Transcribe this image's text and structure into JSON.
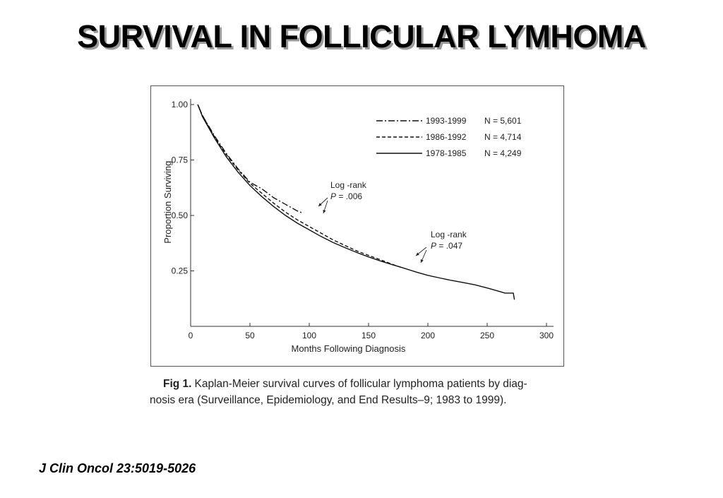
{
  "slide": {
    "title": "SURVIVAL IN FOLLICULAR LYMHOMA",
    "citation": "J Clin Oncol 23:5019-5026"
  },
  "caption": {
    "label": "Fig 1.",
    "line1": "Kaplan-Meier survival curves of follicular lymphoma patients by diag-",
    "line2": "nosis era (Surveillance, Epidemiology, and End Results–9; 1983 to 1999)."
  },
  "chart_data": {
    "type": "line",
    "xlabel": "Months Following Diagnosis",
    "ylabel": "Proportion Surviving",
    "xlim": [
      0,
      300
    ],
    "ylim": [
      0,
      1.0
    ],
    "x_ticks": [
      0,
      50,
      100,
      150,
      200,
      250,
      300
    ],
    "x_tick_labels": [
      "0",
      "50",
      "100",
      "150",
      "200",
      "250",
      "300"
    ],
    "y_ticks": [
      0.25,
      0.5,
      0.75,
      1.0
    ],
    "y_tick_labels": [
      "0.25",
      "0.50",
      "0.75",
      "1.00"
    ],
    "grid": false,
    "legend_position": "top-right",
    "series": [
      {
        "name": "1993-1999",
        "n_label": "N = 5,601",
        "style": "dashdot",
        "x": [
          6,
          10,
          20,
          30,
          40,
          50,
          60,
          70,
          80,
          90,
          95
        ],
        "y": [
          1.0,
          0.95,
          0.86,
          0.78,
          0.71,
          0.65,
          0.62,
          0.58,
          0.55,
          0.52,
          0.51
        ]
      },
      {
        "name": "1986-1992",
        "n_label": "N = 4,714",
        "style": "dashed",
        "x": [
          6,
          10,
          20,
          30,
          40,
          50,
          60,
          70,
          80,
          90,
          100,
          110,
          120,
          130,
          140,
          150,
          160,
          170,
          178
        ],
        "y": [
          1.0,
          0.95,
          0.855,
          0.775,
          0.705,
          0.645,
          0.6,
          0.555,
          0.515,
          0.48,
          0.45,
          0.42,
          0.39,
          0.365,
          0.34,
          0.32,
          0.3,
          0.28,
          0.265
        ]
      },
      {
        "name": "1978-1985",
        "n_label": "N = 4,249",
        "style": "solid",
        "x": [
          6,
          10,
          20,
          30,
          40,
          50,
          60,
          70,
          80,
          90,
          100,
          110,
          120,
          130,
          140,
          150,
          160,
          170,
          180,
          190,
          200,
          210,
          220,
          230,
          240,
          250,
          260,
          265,
          272,
          273
        ],
        "y": [
          1.0,
          0.945,
          0.85,
          0.765,
          0.695,
          0.635,
          0.585,
          0.54,
          0.5,
          0.465,
          0.435,
          0.405,
          0.378,
          0.355,
          0.333,
          0.313,
          0.295,
          0.278,
          0.262,
          0.245,
          0.23,
          0.218,
          0.207,
          0.197,
          0.187,
          0.173,
          0.158,
          0.15,
          0.15,
          0.12
        ]
      }
    ],
    "annotations": [
      {
        "line1": "Log -rank",
        "line2_italic": "P",
        "line2_rest": " = .006"
      },
      {
        "line1": "Log -rank",
        "line2_italic": "P",
        "line2_rest": " = .047"
      }
    ]
  }
}
